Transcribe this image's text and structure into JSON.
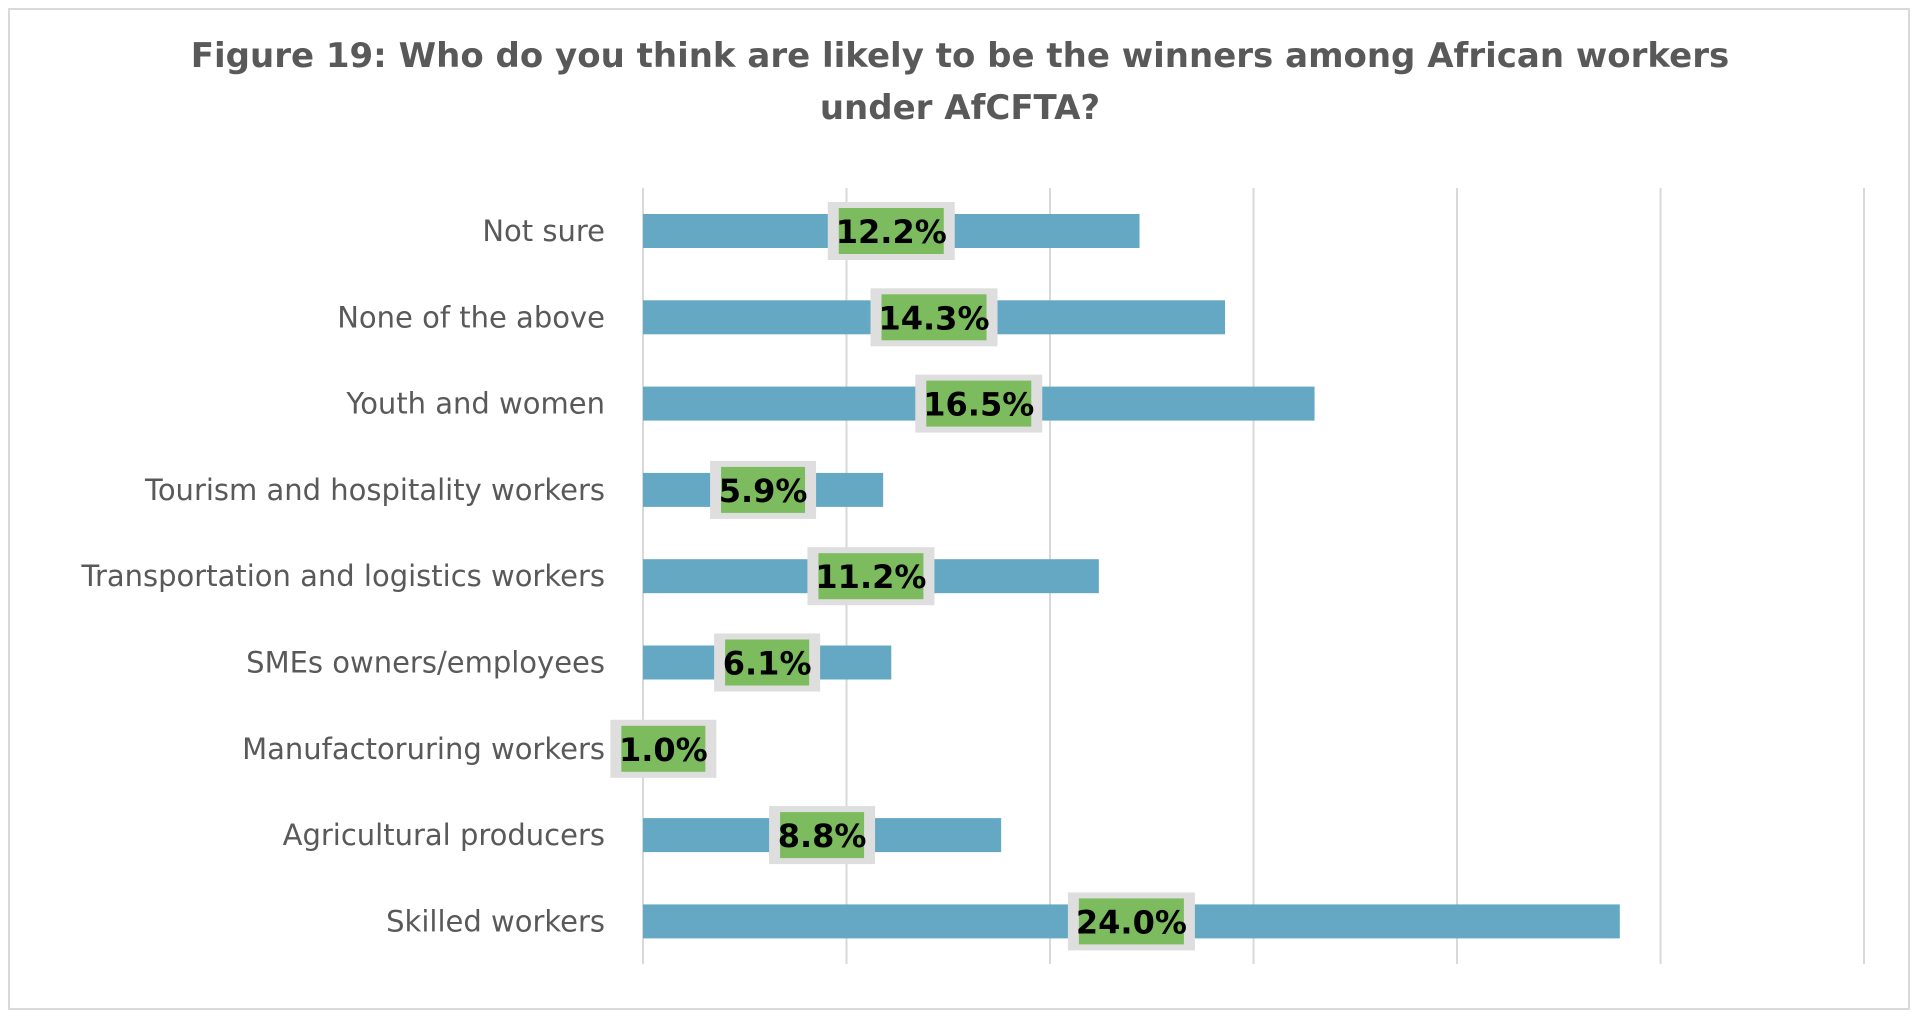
{
  "chart_data": {
    "type": "bar",
    "orientation": "horizontal",
    "title": "Figure 19: Who do you think are likely to be the winners among African workers under AfCFTA?",
    "title_lines": [
      "Figure 19: Who do you think are likely to be the winners among African workers",
      "under AfCFTA?"
    ],
    "categories": [
      "Not sure",
      "None of the above",
      "Youth and women",
      "Tourism and hospitality workers",
      "Transportation and logistics workers",
      "SMEs owners/employees",
      "Manufactoruring workers",
      "Agricultural producers",
      "Skilled workers"
    ],
    "values": [
      12.2,
      14.3,
      16.5,
      5.9,
      11.2,
      6.1,
      1.0,
      8.8,
      24.0
    ],
    "data_labels": [
      "12.2%",
      "14.3%",
      "16.5%",
      "5.9%",
      "11.2%",
      "6.1%",
      "1.0%",
      "8.8%",
      "24.0%"
    ],
    "xlim": [
      0,
      30
    ],
    "grid": true,
    "axis_labels_shown": false,
    "legend": "none",
    "colors": {
      "bar": "#64a8c4",
      "label_fill": "#7cbc5e",
      "label_border": "#dedede",
      "grid": "#d9d9d9",
      "text": "#595959"
    }
  }
}
